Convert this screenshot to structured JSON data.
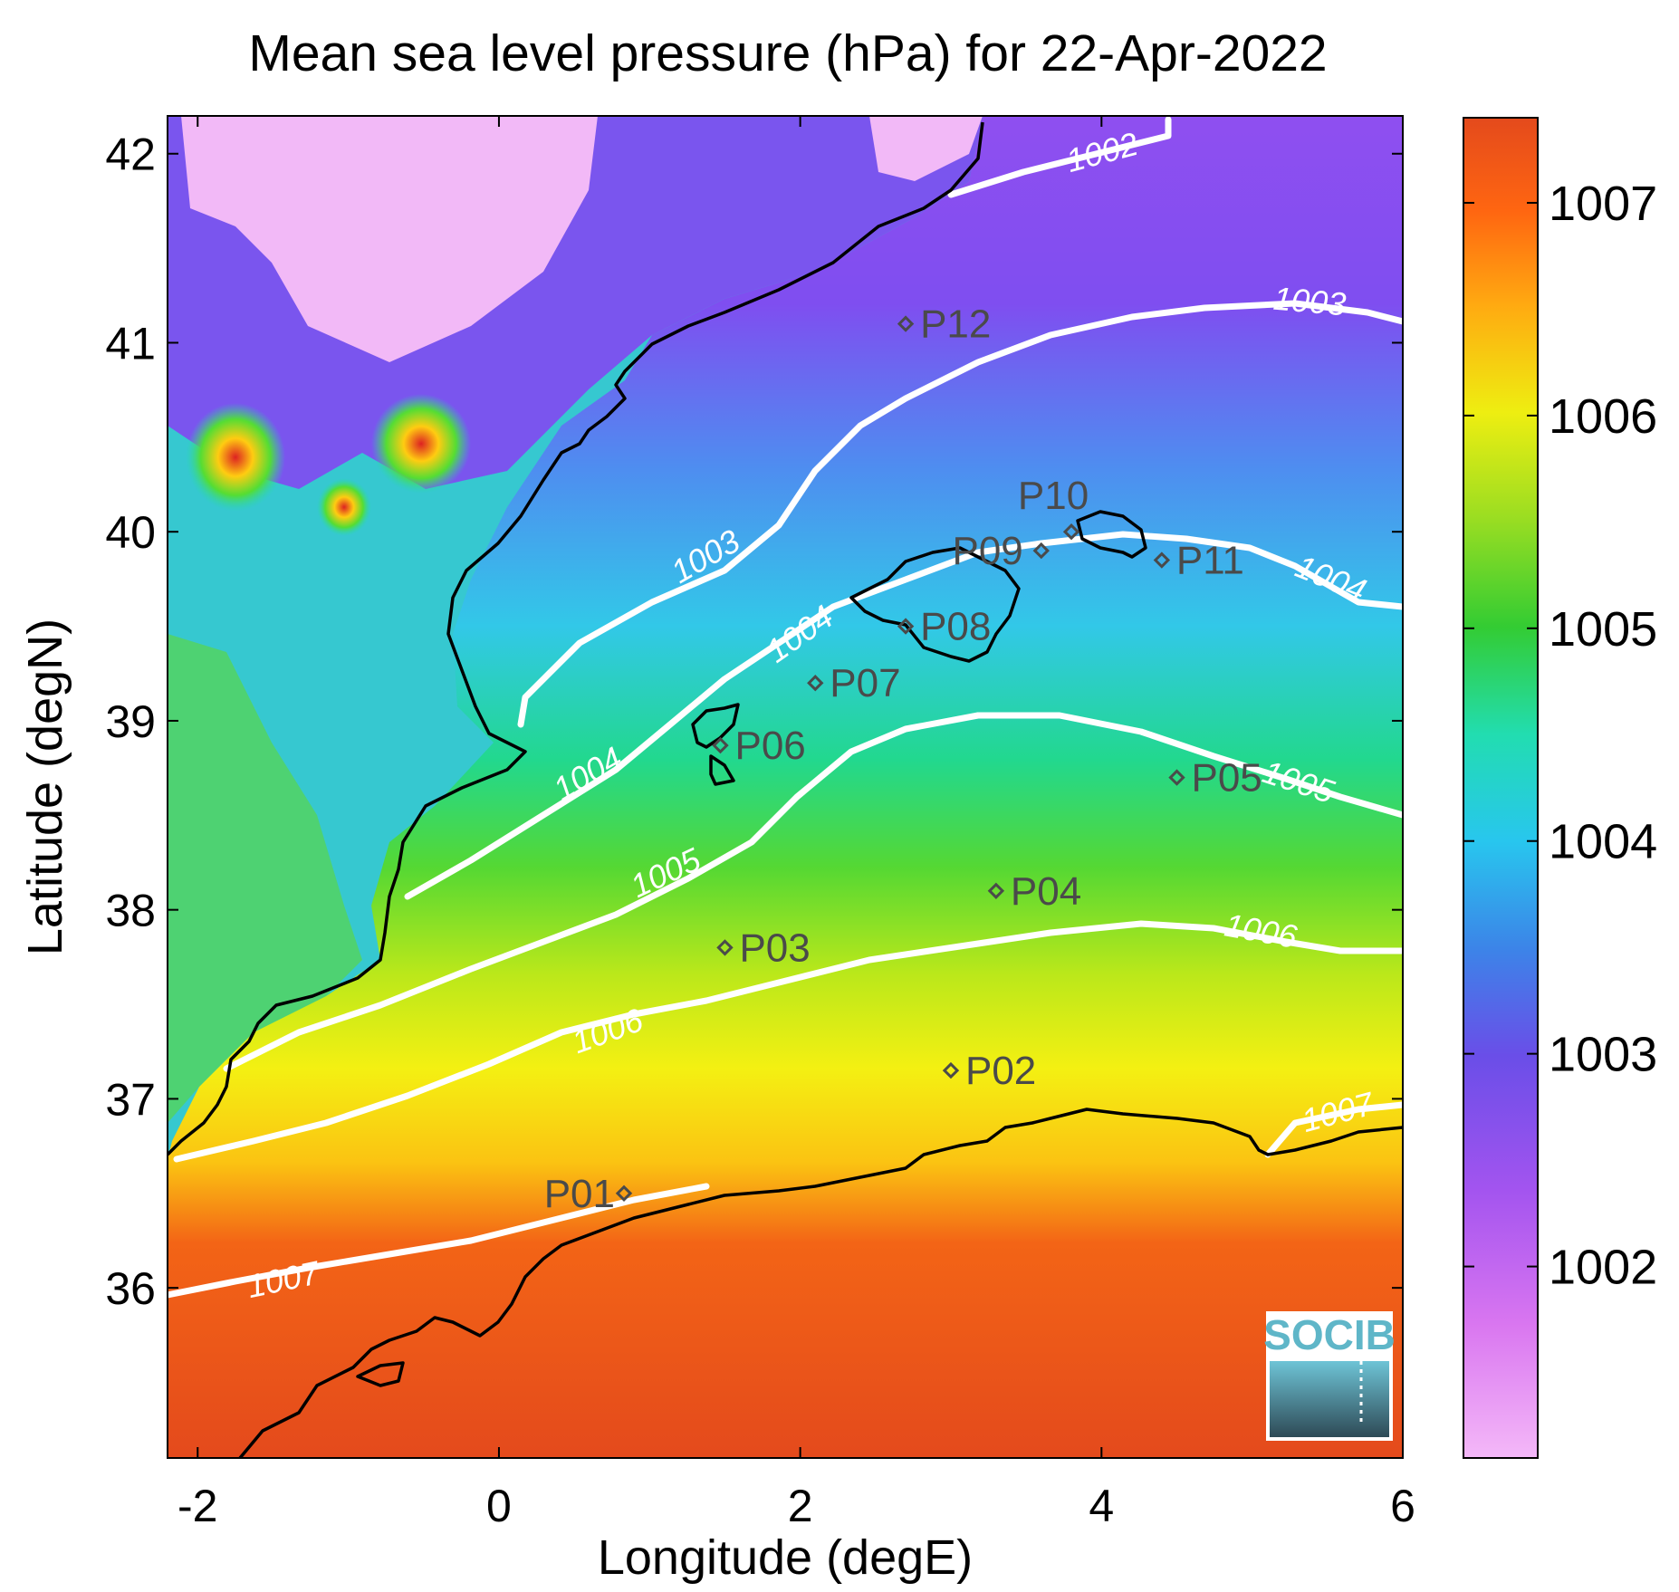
{
  "title": "Mean sea level pressure (hPa) for 22-Apr-2022",
  "xlabel": "Longitude (degE)",
  "ylabel": "Latitude (degN)",
  "x_ticks": [
    "-2",
    "0",
    "2",
    "4",
    "6"
  ],
  "y_ticks": [
    "36",
    "37",
    "38",
    "39",
    "40",
    "41",
    "42"
  ],
  "colorbar": {
    "ticks": [
      "1002",
      "1003",
      "1004",
      "1005",
      "1006",
      "1007"
    ],
    "range": [
      1001.1,
      1007.4
    ],
    "colormap": [
      "#f4b8f8",
      "#cc66ee",
      "#7a44ee",
      "#3a7be8",
      "#22ccee",
      "#22ddaa",
      "#33cc33",
      "#99dd22",
      "#eeee11",
      "#ffaa11",
      "#ff6611",
      "#e44a1c"
    ]
  },
  "stations": [
    {
      "label": "P01",
      "lon": 0.83,
      "lat": 36.5
    },
    {
      "label": "P02",
      "lon": 3.0,
      "lat": 37.15
    },
    {
      "label": "P03",
      "lon": 1.5,
      "lat": 37.8
    },
    {
      "label": "P04",
      "lon": 3.3,
      "lat": 38.1
    },
    {
      "label": "P05",
      "lon": 4.5,
      "lat": 38.7
    },
    {
      "label": "P06",
      "lon": 1.47,
      "lat": 38.87
    },
    {
      "label": "P07",
      "lon": 2.1,
      "lat": 39.2
    },
    {
      "label": "P08",
      "lon": 2.7,
      "lat": 39.5
    },
    {
      "label": "P09",
      "lon": 3.6,
      "lat": 39.9
    },
    {
      "label": "P10",
      "lon": 3.8,
      "lat": 40.0
    },
    {
      "label": "P11",
      "lon": 4.4,
      "lat": 39.85
    },
    {
      "label": "P12",
      "lon": 2.7,
      "lat": 41.1
    }
  ],
  "contours": [
    {
      "label": "1002"
    },
    {
      "label": "1003"
    },
    {
      "label": "1003"
    },
    {
      "label": "1004"
    },
    {
      "label": "1004"
    },
    {
      "label": "1004"
    },
    {
      "label": "1005"
    },
    {
      "label": "1005"
    },
    {
      "label": "1006"
    },
    {
      "label": "1006"
    },
    {
      "label": "1007"
    },
    {
      "label": "1007"
    }
  ],
  "logo": "SOCIB"
}
